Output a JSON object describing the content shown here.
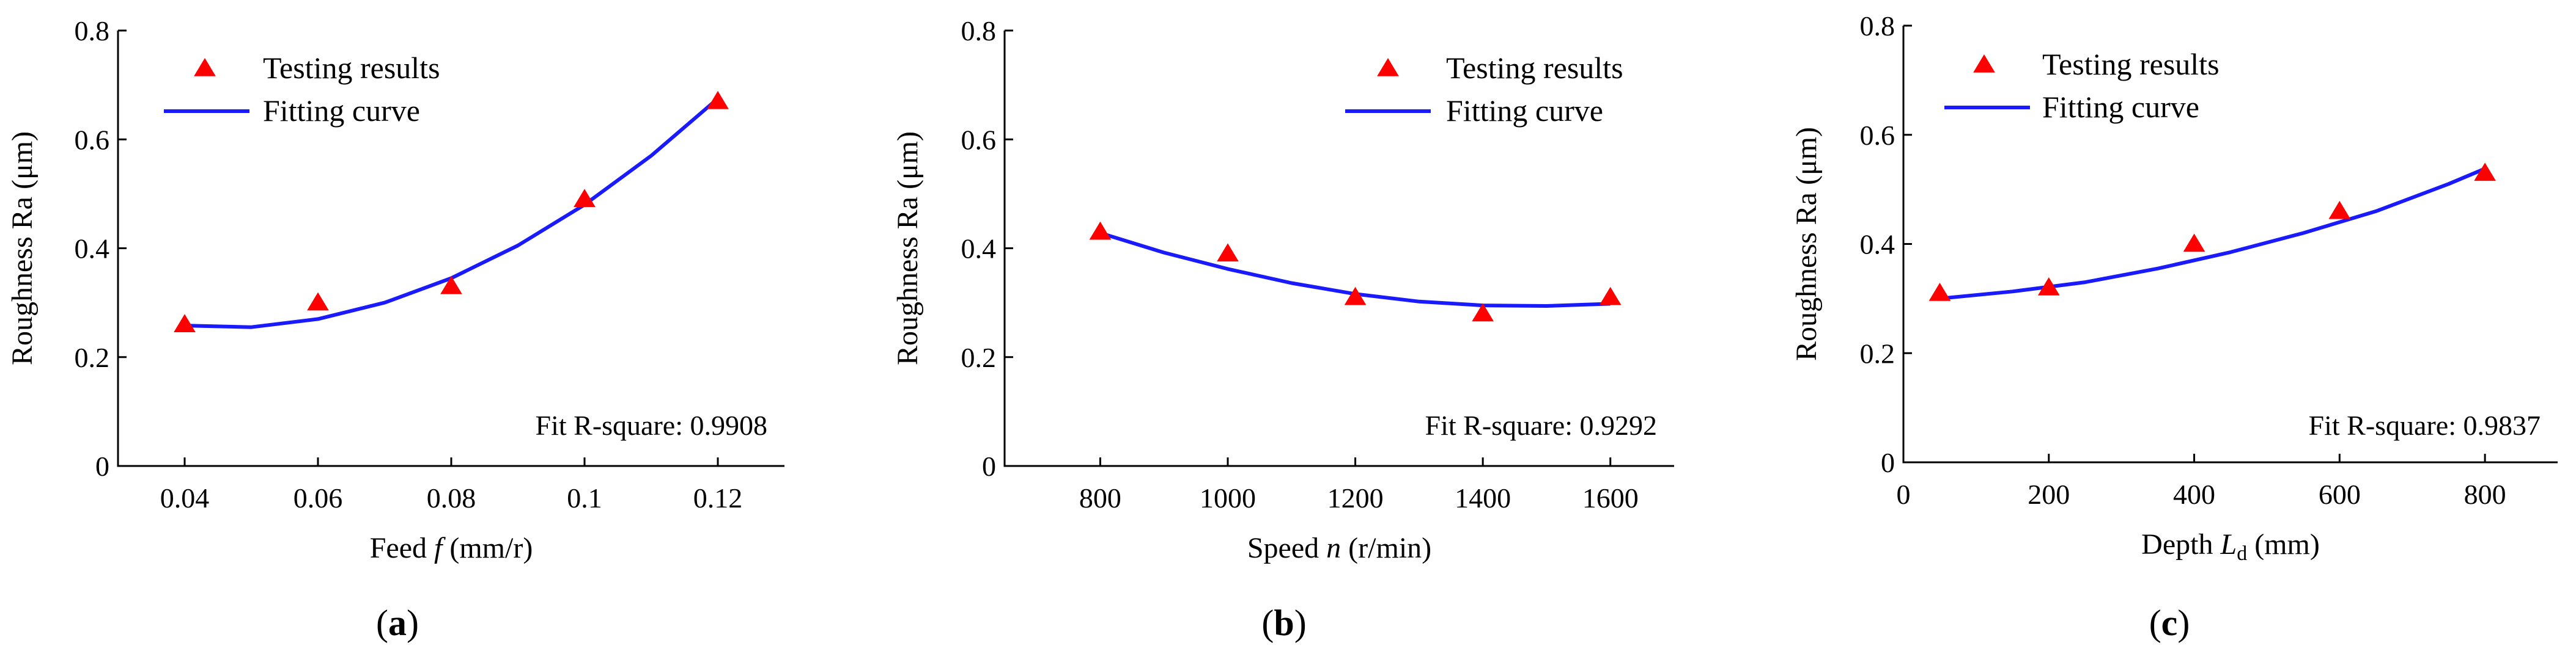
{
  "chart_data": [
    {
      "type": "scatter",
      "panel_label": "a",
      "xlabel_pre": "Feed ",
      "xlabel_var": "f",
      "xlabel_post": " (mm/r)",
      "ylabel": "Roughness Ra (μm)",
      "xlim": [
        0.03,
        0.13
      ],
      "ylim": [
        0,
        0.8
      ],
      "xticks": [
        0.04,
        0.06,
        0.08,
        0.1,
        0.12
      ],
      "xtick_labels": [
        "0.04",
        "0.06",
        "0.08",
        "0.1",
        "0.12"
      ],
      "yticks": [
        0,
        0.2,
        0.4,
        0.6,
        0.8
      ],
      "ytick_labels": [
        "0",
        "0.2",
        "0.4",
        "0.6",
        "0.8"
      ],
      "legend": {
        "markers": "Testing results",
        "curve": "Fitting curve",
        "placement": "top-left"
      },
      "fit_text": "Fit R-square: 0.9908",
      "points": {
        "x": [
          0.04,
          0.06,
          0.08,
          0.1,
          0.12
        ],
        "y": [
          0.26,
          0.3,
          0.33,
          0.49,
          0.67
        ]
      },
      "fit_curve": {
        "x": [
          0.04,
          0.05,
          0.06,
          0.07,
          0.08,
          0.09,
          0.1,
          0.11,
          0.12
        ],
        "y": [
          0.258,
          0.255,
          0.27,
          0.3,
          0.345,
          0.405,
          0.48,
          0.57,
          0.675
        ]
      }
    },
    {
      "type": "scatter",
      "panel_label": "b",
      "xlabel_pre": "Speed ",
      "xlabel_var": "n",
      "xlabel_post": " (r/min)",
      "ylabel": "Roughness Ra (μm)",
      "xlim": [
        650,
        1700
      ],
      "ylim": [
        0,
        0.8
      ],
      "xticks": [
        800,
        1000,
        1200,
        1400,
        1600
      ],
      "xtick_labels": [
        "800",
        "1000",
        "1200",
        "1400",
        "1600"
      ],
      "yticks": [
        0,
        0.2,
        0.4,
        0.6,
        0.8
      ],
      "ytick_labels": [
        "0",
        "0.2",
        "0.4",
        "0.6",
        "0.8"
      ],
      "legend": {
        "markers": "Testing results",
        "curve": "Fitting curve",
        "placement": "top-right"
      },
      "fit_text": "Fit R-square: 0.9292",
      "points": {
        "x": [
          800,
          1000,
          1200,
          1400,
          1600
        ],
        "y": [
          0.43,
          0.39,
          0.31,
          0.28,
          0.31
        ]
      },
      "fit_curve": {
        "x": [
          800,
          900,
          1000,
          1100,
          1200,
          1300,
          1400,
          1500,
          1600
        ],
        "y": [
          0.428,
          0.392,
          0.362,
          0.336,
          0.316,
          0.302,
          0.295,
          0.294,
          0.298
        ]
      }
    },
    {
      "type": "scatter",
      "panel_label": "c",
      "xlabel_pre": "Depth ",
      "xlabel_var": "L",
      "xlabel_sub": "d",
      "xlabel_post": " (mm)",
      "ylabel": "Roughness Ra (μm)",
      "xlim": [
        0,
        900
      ],
      "ylim": [
        0,
        0.8
      ],
      "xticks": [
        0,
        200,
        400,
        600,
        800
      ],
      "xtick_labels": [
        "0",
        "200",
        "400",
        "600",
        "800"
      ],
      "yticks": [
        0,
        0.2,
        0.4,
        0.6,
        0.8
      ],
      "ytick_labels": [
        "0",
        "0.2",
        "0.4",
        "0.6",
        "0.8"
      ],
      "legend": {
        "markers": "Testing results",
        "curve": "Fitting curve",
        "placement": "top-left"
      },
      "fit_text": "Fit R-square: 0.9837",
      "points": {
        "x": [
          50,
          200,
          400,
          600,
          800
        ],
        "y": [
          0.31,
          0.32,
          0.4,
          0.46,
          0.53
        ]
      },
      "fit_curve": {
        "x": [
          50,
          150,
          250,
          350,
          450,
          550,
          650,
          750,
          800
        ],
        "y": [
          0.3,
          0.313,
          0.33,
          0.355,
          0.385,
          0.42,
          0.46,
          0.51,
          0.538
        ]
      }
    }
  ]
}
